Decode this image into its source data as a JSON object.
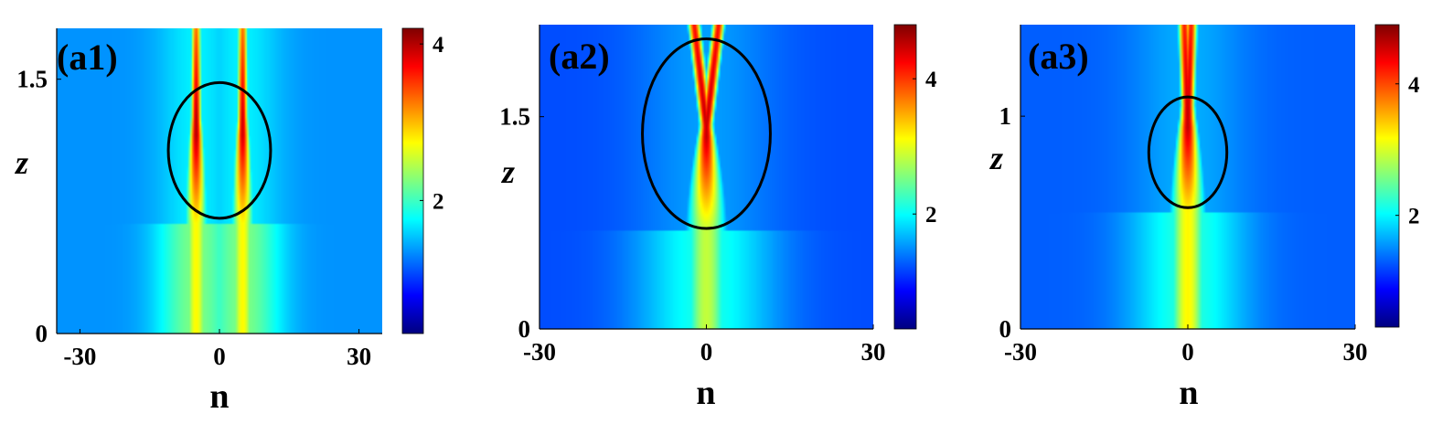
{
  "colormap": [
    "#00007f",
    "#0000ff",
    "#007fff",
    "#00ffff",
    "#7fff7f",
    "#ffff00",
    "#ff7f00",
    "#ff0000",
    "#7f0000"
  ],
  "chart_data": [
    {
      "type": "heatmap",
      "panel_label": "(a1)",
      "xlabel": "n",
      "ylabel": "z",
      "xlim": [
        -35,
        35
      ],
      "ylim": [
        0,
        1.8
      ],
      "x_ticks": [
        -30,
        0,
        30
      ],
      "x_tick_labels": [
        "-30",
        "0",
        "30"
      ],
      "y_ticks": [
        0,
        1.5
      ],
      "y_tick_labels": [
        "0",
        "1.5"
      ],
      "colorbar": {
        "range": [
          0.3,
          4.2
        ],
        "ticks": [
          2,
          4
        ],
        "tick_labels": [
          "2",
          "4"
        ]
      },
      "background_value": 1.35,
      "beams": [
        {
          "label": "left beam",
          "center_n": -5,
          "lower_width": 3.2,
          "lower_peak": 2.75,
          "mid_peak": 4.0,
          "upper_peak": 3.3,
          "narrow_from_z": 0.65,
          "upper_split": 0
        },
        {
          "label": "right beam",
          "center_n": 5,
          "lower_width": 3.2,
          "lower_peak": 2.75,
          "mid_peak": 3.9,
          "upper_peak": 3.3,
          "narrow_from_z": 0.65,
          "upper_split": 0
        }
      ],
      "ellipse": {
        "center_n": 0,
        "center_z": 1.08,
        "radius_n": 11,
        "radius_z": 0.4
      }
    },
    {
      "type": "heatmap",
      "panel_label": "(a2)",
      "xlabel": "n",
      "ylabel": "z",
      "xlim": [
        -30,
        30
      ],
      "ylim": [
        0,
        2.15
      ],
      "x_ticks": [
        -30,
        0,
        30
      ],
      "x_tick_labels": [
        "-30",
        "0",
        "30"
      ],
      "y_ticks": [
        0,
        1.5
      ],
      "y_tick_labels": [
        "0",
        "1.5"
      ],
      "colorbar": {
        "range": [
          0.3,
          4.8
        ],
        "ticks": [
          2,
          4
        ],
        "tick_labels": [
          "2",
          "4"
        ]
      },
      "background_value": 1.2,
      "beams": [
        {
          "label": "central beam",
          "center_n": 0,
          "lower_width": 4.8,
          "lower_peak": 2.85,
          "mid_peak": 4.5,
          "upper_peak": 4.2,
          "narrow_from_z": 0.7,
          "upper_split": 2.2
        }
      ],
      "ellipse": {
        "center_n": 0,
        "center_z": 1.38,
        "radius_n": 11.5,
        "radius_z": 0.67
      }
    },
    {
      "type": "heatmap",
      "panel_label": "(a3)",
      "xlabel": "n",
      "ylabel": "z",
      "xlim": [
        -30,
        30
      ],
      "ylim": [
        0,
        1.43
      ],
      "x_ticks": [
        -30,
        0,
        30
      ],
      "x_tick_labels": [
        "-30",
        "0",
        "30"
      ],
      "y_ticks": [
        0,
        1
      ],
      "y_tick_labels": [
        "0",
        "1"
      ],
      "colorbar": {
        "range": [
          0.3,
          4.9
        ],
        "ticks": [
          2,
          4
        ],
        "tick_labels": [
          "2",
          "4"
        ]
      },
      "background_value": 1.3,
      "beams": [
        {
          "label": "central beam",
          "center_n": 0,
          "lower_width": 4.0,
          "lower_peak": 3.2,
          "mid_peak": 4.6,
          "upper_peak": 4.2,
          "narrow_from_z": 0.55,
          "upper_split": 0.6
        }
      ],
      "ellipse": {
        "center_n": 0,
        "center_z": 0.83,
        "radius_n": 7,
        "radius_z": 0.26
      }
    }
  ]
}
